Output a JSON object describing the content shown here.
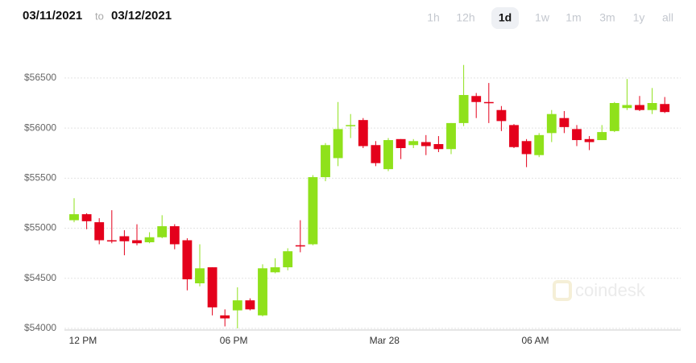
{
  "header": {
    "from": "03/11/2021",
    "separator": "to",
    "to": "03/12/2021"
  },
  "ranges": [
    "1h",
    "12h",
    "1d",
    "1w",
    "1m",
    "3m",
    "1y",
    "all"
  ],
  "selected_range": 2,
  "chart_data": {
    "type": "candlestick",
    "watermark": "coindesk",
    "categories": [
      null,
      "12 PM",
      null,
      null,
      null,
      null,
      null,
      null,
      null,
      null,
      null,
      null,
      null,
      "06 PM",
      null,
      null,
      null,
      null,
      null,
      null,
      null,
      null,
      null,
      null,
      null,
      "Mar 28",
      null,
      null,
      null,
      null,
      null,
      null,
      null,
      null,
      null,
      null,
      null,
      "06 AM",
      null,
      null,
      null,
      null,
      null,
      null,
      null,
      null,
      null,
      null
    ],
    "open": [
      55080,
      55140,
      55060,
      54880,
      54920,
      54880,
      54860,
      54910,
      55020,
      54880,
      54450,
      54610,
      54130,
      54180,
      54280,
      54130,
      54560,
      54610,
      54830,
      54840,
      55510,
      55700,
      56020,
      56080,
      55830,
      55590,
      55890,
      55830,
      55860,
      55840,
      55790,
      56050,
      56320,
      56260,
      56180,
      56030,
      55870,
      55730,
      55950,
      56100,
      55990,
      55890,
      55880,
      55970,
      56200,
      56230,
      56180,
      56240
    ],
    "high": [
      55300,
      55150,
      55100,
      55180,
      54980,
      55040,
      54960,
      55130,
      55040,
      54900,
      54840,
      54610,
      54190,
      54410,
      54300,
      54640,
      54700,
      54800,
      55080,
      55530,
      55850,
      56260,
      56140,
      56100,
      55870,
      55900,
      55890,
      55890,
      55930,
      55920,
      56050,
      56630,
      56350,
      56450,
      56220,
      56040,
      55890,
      55950,
      56180,
      56170,
      56030,
      55920,
      56030,
      56260,
      56490,
      56320,
      56400,
      56310
    ],
    "low": [
      55060,
      54990,
      54840,
      54850,
      54730,
      54830,
      54850,
      54900,
      54790,
      54380,
      54420,
      54130,
      54020,
      54000,
      54180,
      54120,
      54550,
      54580,
      54760,
      54830,
      55470,
      55620,
      55900,
      55800,
      55620,
      55570,
      55690,
      55800,
      55730,
      55760,
      55740,
      56020,
      56100,
      56050,
      55970,
      55800,
      55610,
      55710,
      55860,
      55950,
      55820,
      55780,
      55880,
      55960,
      56180,
      56170,
      56140,
      56150
    ],
    "close": [
      55140,
      55070,
      54880,
      54870,
      54870,
      54850,
      54910,
      55020,
      54840,
      54490,
      54600,
      54210,
      54100,
      54280,
      54190,
      54600,
      54610,
      54770,
      54820,
      55510,
      55830,
      55990,
      56030,
      55820,
      55650,
      55880,
      55800,
      55870,
      55820,
      55790,
      56050,
      56330,
      56260,
      56250,
      56070,
      55810,
      55740,
      55930,
      56140,
      56010,
      55880,
      55860,
      55960,
      56250,
      56230,
      56180,
      56250,
      56160
    ],
    "up_color": "#8fe11b",
    "down_color": "#e4001b",
    "ylim": [
      54000,
      56700
    ],
    "yticks": [
      {
        "value": 54000,
        "label": "$54000"
      },
      {
        "value": 54500,
        "label": "$54500"
      },
      {
        "value": 55000,
        "label": "$55000"
      },
      {
        "value": 55500,
        "label": "$55500"
      },
      {
        "value": 56000,
        "label": "$56000"
      },
      {
        "value": 56500,
        "label": "$56500"
      }
    ],
    "grid": true
  }
}
